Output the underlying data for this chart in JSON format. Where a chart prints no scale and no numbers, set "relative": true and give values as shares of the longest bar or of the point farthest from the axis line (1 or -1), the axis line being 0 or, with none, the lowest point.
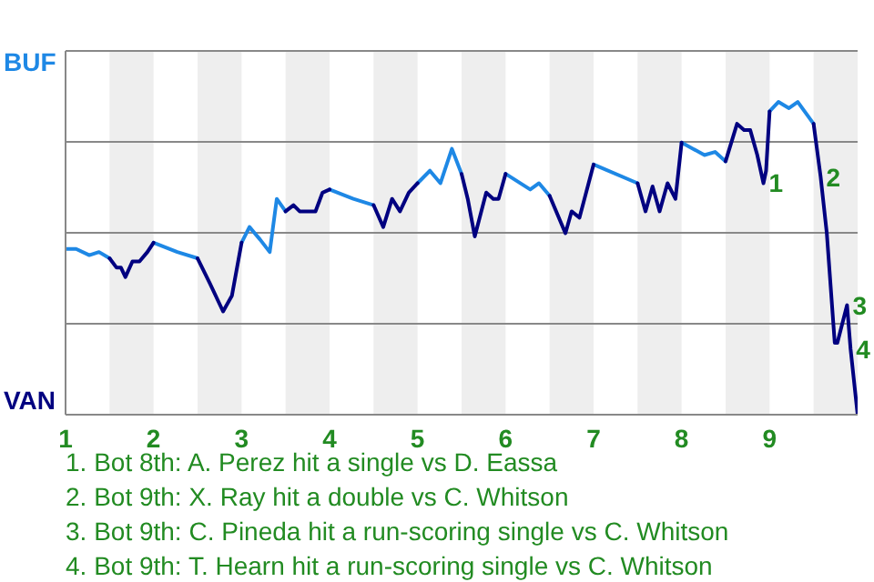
{
  "chart_data": {
    "type": "line",
    "relative": true,
    "xlim": [
      1,
      10
    ],
    "xticks": [
      1,
      2,
      3,
      4,
      5,
      6,
      7,
      8,
      9
    ],
    "grid": "y",
    "series": [
      {
        "color": "#1e88e5",
        "x": [
          1,
          1.12,
          1.27,
          1.38,
          1.5,
          1.75,
          2,
          2.27,
          2.5,
          2.75,
          3,
          3.09,
          3.21,
          3.32,
          3.4,
          3.5,
          3.75,
          4,
          4.27,
          4.5,
          4.75,
          5,
          5.14,
          5.26,
          5.39,
          5.5,
          5.75,
          6,
          6.28,
          6.38,
          6.5,
          6.75,
          7,
          7.5,
          7.75,
          8,
          8.26,
          8.38,
          8.5,
          8.75,
          9,
          9.1,
          9.22,
          9.32,
          9.5
        ],
        "values": [
          0.53,
          0.53,
          0.51,
          0.52,
          0.5,
          null,
          0.55,
          0.52,
          0.5,
          null,
          0.55,
          0.6,
          0.56,
          0.52,
          0.69,
          0.65,
          null,
          0.72,
          0.69,
          0.67,
          null,
          0.74,
          0.78,
          0.74,
          0.85,
          0.77,
          null,
          0.77,
          0.72,
          0.74,
          0.7,
          null,
          0.8,
          0.74,
          null,
          0.87,
          0.83,
          0.84,
          0.81,
          null,
          0.97,
          1,
          0.98,
          1,
          0.93
        ]
      },
      {
        "color": "#000080",
        "x": [
          1.5,
          1.58,
          1.63,
          1.68,
          1.76,
          1.84,
          1.93,
          2,
          2.25,
          2.5,
          2.64,
          2.79,
          2.89,
          3,
          3.25,
          3.5,
          3.59,
          3.66,
          3.84,
          3.92,
          4,
          4.25,
          4.5,
          4.61,
          4.71,
          4.8,
          4.9,
          5,
          5.25,
          5.5,
          5.57,
          5.65,
          5.78,
          5.86,
          5.92,
          6,
          6.25,
          6.5,
          6.68,
          6.75,
          6.84,
          7,
          7.25,
          7.5,
          7.59,
          7.67,
          7.75,
          7.84,
          7.93,
          8,
          8.25,
          8.5,
          8.63,
          8.71,
          8.78,
          8.86,
          8.93,
          8.96,
          9,
          9.25,
          9.5,
          9.58,
          9.65,
          9.74,
          9.77,
          9.88,
          9.92,
          10
        ],
        "values": [
          0.5,
          0.47,
          0.47,
          0.44,
          0.49,
          0.49,
          0.52,
          0.55,
          null,
          0.5,
          0.42,
          0.33,
          0.38,
          0.55,
          null,
          0.65,
          0.67,
          0.65,
          0.65,
          0.71,
          0.72,
          null,
          0.67,
          0.6,
          0.69,
          0.65,
          0.71,
          0.74,
          null,
          0.77,
          0.69,
          0.57,
          0.71,
          0.69,
          0.69,
          0.77,
          null,
          0.7,
          0.58,
          0.65,
          0.63,
          0.8,
          null,
          0.74,
          0.65,
          0.73,
          0.65,
          0.74,
          0.69,
          0.87,
          null,
          0.81,
          0.93,
          0.91,
          0.91,
          0.83,
          0.74,
          0.78,
          0.97,
          null,
          0.93,
          0.76,
          0.58,
          0.23,
          0.23,
          0.35,
          0.21,
          0
        ]
      }
    ],
    "bands": [
      {
        "axis": "x",
        "from": 1.5,
        "to": 2,
        "color": "#eeeeee"
      },
      {
        "axis": "x",
        "from": 2.5,
        "to": 3,
        "color": "#eeeeee"
      },
      {
        "axis": "x",
        "from": 3.5,
        "to": 4,
        "color": "#eeeeee"
      },
      {
        "axis": "x",
        "from": 4.5,
        "to": 5,
        "color": "#eeeeee"
      },
      {
        "axis": "x",
        "from": 5.5,
        "to": 6,
        "color": "#eeeeee"
      },
      {
        "axis": "x",
        "from": 6.5,
        "to": 7,
        "color": "#eeeeee"
      },
      {
        "axis": "x",
        "from": 7.5,
        "to": 8,
        "color": "#eeeeee"
      },
      {
        "axis": "x",
        "from": 8.5,
        "to": 9,
        "color": "#eeeeee"
      },
      {
        "axis": "x",
        "from": 9.5,
        "to": 10,
        "color": "#eeeeee"
      }
    ],
    "annotations": [
      "BUF",
      "VAN",
      {
        "text": "1",
        "x": 8.93,
        "y": 0.74
      },
      {
        "text": "2",
        "x": 9.58,
        "y": 0.76
      },
      {
        "text": "3",
        "x": 9.88,
        "y": 0.35
      },
      {
        "text": "4",
        "x": 9.92,
        "y": 0.21
      },
      "1. Bot 8th: A. Perez hit a single vs D. Eassa",
      "2. Bot 9th: X. Ray hit a double vs C. Whitson",
      "3. Bot 9th: C. Pineda hit a run-scoring single vs C. Whitson",
      "4. Bot 9th: T. Hearn hit a run-scoring single vs C. Whitson"
    ]
  }
}
